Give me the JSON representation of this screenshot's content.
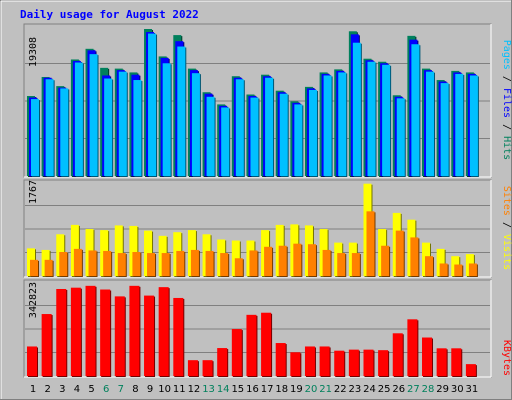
{
  "title": "Daily usage for August 2022",
  "colors": {
    "background": "#c0c0c0",
    "title": "#0000ff",
    "hits": "#00805c",
    "files": "#0000ff",
    "pages": "#00c0ff",
    "visits": "#ffff00",
    "sites": "#ff8000",
    "kbytes": "#ff0000",
    "weekday_label": "#000000",
    "weekend_label": "#00805c"
  },
  "chart_data": [
    {
      "type": "bar",
      "panel": "hits-files-pages",
      "categories": [
        "1",
        "2",
        "3",
        "4",
        "5",
        "6",
        "7",
        "8",
        "9",
        "10",
        "11",
        "12",
        "13",
        "14",
        "15",
        "16",
        "17",
        "18",
        "19",
        "20",
        "21",
        "22",
        "23",
        "24",
        "25",
        "26",
        "27",
        "28",
        "29",
        "30",
        "31"
      ],
      "weekend": [
        false,
        false,
        false,
        false,
        false,
        true,
        true,
        false,
        false,
        false,
        false,
        false,
        true,
        true,
        false,
        false,
        false,
        false,
        false,
        true,
        true,
        false,
        false,
        false,
        false,
        false,
        true,
        true,
        false,
        false,
        false
      ],
      "ytick_label": "19308",
      "ymax": 19308,
      "series": [
        {
          "name": "Hits",
          "values": [
            10500,
            13000,
            11800,
            15300,
            16700,
            14200,
            14100,
            13600,
            19300,
            15700,
            18500,
            14100,
            11000,
            9400,
            13100,
            10700,
            13300,
            11200,
            9800,
            11700,
            13600,
            14000,
            19000,
            15400,
            15000,
            10600,
            18400,
            14100,
            12600,
            13800,
            13600
          ]
        },
        {
          "name": "Files",
          "values": [
            10300,
            12900,
            11600,
            15100,
            16500,
            13200,
            13900,
            13300,
            18900,
            15500,
            17700,
            13900,
            10800,
            9200,
            12900,
            10500,
            13100,
            11000,
            9600,
            11500,
            13400,
            13800,
            18600,
            15200,
            14800,
            10400,
            17900,
            13900,
            12400,
            13600,
            13400
          ]
        },
        {
          "name": "Pages",
          "values": [
            10100,
            12700,
            11500,
            14900,
            16000,
            12800,
            13700,
            12600,
            18700,
            14800,
            17000,
            13500,
            10400,
            9000,
            12700,
            10300,
            12900,
            10800,
            9400,
            11300,
            13200,
            13600,
            17500,
            15000,
            14600,
            10200,
            17300,
            13700,
            12200,
            13400,
            13200
          ]
        }
      ]
    },
    {
      "type": "bar",
      "panel": "visits-sites",
      "categories": [
        "1",
        "2",
        "3",
        "4",
        "5",
        "6",
        "7",
        "8",
        "9",
        "10",
        "11",
        "12",
        "13",
        "14",
        "15",
        "16",
        "17",
        "18",
        "19",
        "20",
        "21",
        "22",
        "23",
        "24",
        "25",
        "26",
        "27",
        "28",
        "29",
        "30",
        "31"
      ],
      "ytick_label": "1767",
      "ymax": 1767,
      "series": [
        {
          "name": "Visits",
          "values": [
            530,
            500,
            800,
            980,
            900,
            880,
            970,
            960,
            870,
            770,
            840,
            880,
            800,
            700,
            680,
            680,
            880,
            980,
            990,
            970,
            900,
            640,
            640,
            1770,
            900,
            1210,
            1080,
            640,
            520,
            380,
            420
          ]
        },
        {
          "name": "Sites",
          "values": [
            310,
            310,
            460,
            520,
            490,
            480,
            440,
            460,
            440,
            440,
            480,
            500,
            480,
            440,
            340,
            490,
            560,
            580,
            620,
            610,
            500,
            440,
            440,
            1240,
            580,
            870,
            740,
            380,
            240,
            220,
            240
          ]
        }
      ]
    },
    {
      "type": "bar",
      "panel": "kbytes",
      "categories": [
        "1",
        "2",
        "3",
        "4",
        "5",
        "6",
        "7",
        "8",
        "9",
        "10",
        "11",
        "12",
        "13",
        "14",
        "15",
        "16",
        "17",
        "18",
        "19",
        "20",
        "21",
        "22",
        "23",
        "24",
        "25",
        "26",
        "27",
        "28",
        "29",
        "30",
        "31"
      ],
      "ytick_label": "342823",
      "ymax": 342823,
      "series": [
        {
          "name": "KBytes",
          "values": [
            112000,
            235000,
            330000,
            335000,
            342000,
            328000,
            302000,
            342000,
            305000,
            337000,
            296000,
            60000,
            60000,
            106000,
            178000,
            232000,
            240000,
            125000,
            90000,
            112000,
            112000,
            96000,
            100000,
            100000,
            98000,
            162000,
            215000,
            146000,
            105000,
            105000,
            45000
          ]
        }
      ]
    }
  ],
  "side_labels": {
    "top": [
      {
        "text": "Pages",
        "color": "#00c0ff"
      },
      {
        "text": " / ",
        "color": "#000000"
      },
      {
        "text": "Files",
        "color": "#0000ff"
      },
      {
        "text": " / ",
        "color": "#000000"
      },
      {
        "text": "Hits",
        "color": "#00805c"
      }
    ],
    "middle": [
      {
        "text": "Sites",
        "color": "#ff8000"
      },
      {
        "text": " / ",
        "color": "#000000"
      },
      {
        "text": "Visits",
        "color": "#ffff00"
      }
    ],
    "bottom": [
      {
        "text": "KBytes",
        "color": "#ff0000"
      }
    ]
  }
}
